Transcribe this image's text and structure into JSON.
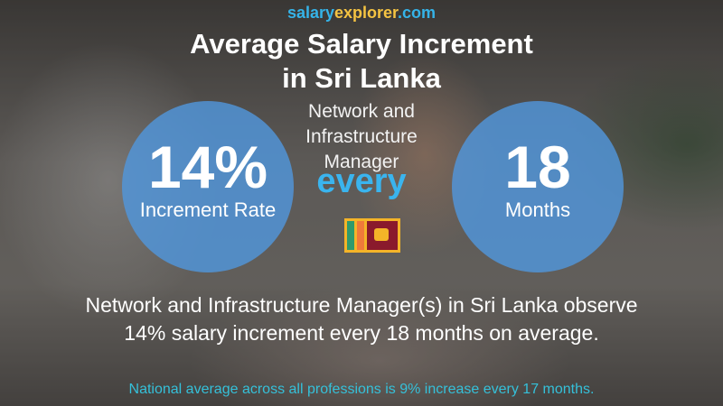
{
  "brand": {
    "part1": "salary",
    "part2": "explorer",
    "part3": ".com"
  },
  "title": {
    "line1": "Average Salary Increment",
    "line2": "in Sri Lanka"
  },
  "job_title": {
    "line1": "Network and",
    "line2": "Infrastructure",
    "line3": "Manager"
  },
  "increment": {
    "value": "14%",
    "label": "Increment Rate"
  },
  "connector": "every",
  "period": {
    "value": "18",
    "label": "Months"
  },
  "flag": {
    "country": "Sri Lanka",
    "icon": "sri-lanka-flag-icon"
  },
  "summary": {
    "line1": "Network and Infrastructure Manager(s) in Sri Lanka observe",
    "line2": "14% salary increment every 18 months on average."
  },
  "national_note": "National average across all professions is 9% increase every 17 months.",
  "colors": {
    "circle": "#5096dc",
    "accent_blue": "#35b3e8",
    "accent_yellow": "#f5c342",
    "national_text": "#35c0d9"
  }
}
